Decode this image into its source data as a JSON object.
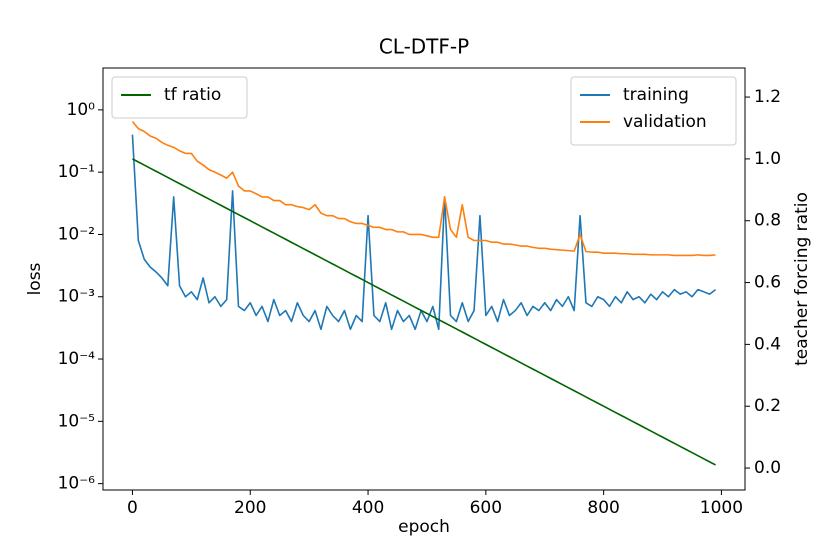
{
  "chart_data": {
    "type": "line",
    "title": "CL-DTF-P",
    "x_label": "epoch",
    "y_label": "loss",
    "y2_label": "teacher forcing ratio",
    "xlim": [
      -50,
      1040
    ],
    "xticks": [
      0,
      200,
      400,
      600,
      800,
      1000
    ],
    "yscale": "log",
    "ylim": [
      7.9e-07,
      4.7
    ],
    "yticks": [
      {
        "value": 1e-06,
        "label": "10⁻⁶"
      },
      {
        "value": 1e-05,
        "label": "10⁻⁵"
      },
      {
        "value": 0.0001,
        "label": "10⁻⁴"
      },
      {
        "value": 0.001,
        "label": "10⁻³"
      },
      {
        "value": 0.01,
        "label": "10⁻²"
      },
      {
        "value": 0.1,
        "label": "10⁻¹"
      },
      {
        "value": 1,
        "label": "10⁰"
      }
    ],
    "y2lim": [
      -0.071,
      1.294
    ],
    "y2ticks": [
      {
        "value": 0,
        "label": "0.0"
      },
      0.2,
      0.4,
      0.6,
      0.8,
      {
        "value": 1,
        "label": "1.0"
      },
      1.2
    ],
    "legend": "upper right",
    "legend2": "upper left",
    "x": [
      0,
      10,
      20,
      30,
      40,
      50,
      60,
      70,
      80,
      90,
      100,
      110,
      120,
      130,
      140,
      150,
      160,
      170,
      180,
      190,
      200,
      210,
      220,
      230,
      240,
      250,
      260,
      270,
      280,
      290,
      300,
      310,
      320,
      330,
      340,
      350,
      360,
      370,
      380,
      390,
      400,
      410,
      420,
      430,
      440,
      450,
      460,
      470,
      480,
      490,
      500,
      510,
      520,
      530,
      540,
      550,
      560,
      570,
      580,
      590,
      600,
      610,
      620,
      630,
      640,
      650,
      660,
      670,
      680,
      690,
      700,
      710,
      720,
      730,
      740,
      750,
      760,
      770,
      780,
      790,
      800,
      810,
      820,
      830,
      840,
      850,
      860,
      870,
      880,
      890,
      900,
      910,
      920,
      930,
      940,
      950,
      960,
      970,
      980,
      990
    ],
    "series": [
      {
        "name": "training",
        "color": "#1f77b4",
        "values": [
          0.4,
          0.008,
          0.004,
          0.003,
          0.0025,
          0.002,
          0.0015,
          0.04,
          0.0015,
          0.001,
          0.0012,
          0.0009,
          0.002,
          0.0008,
          0.001,
          0.0007,
          0.0009,
          0.05,
          0.0007,
          0.0006,
          0.0008,
          0.0005,
          0.0007,
          0.0004,
          0.0009,
          0.0005,
          0.0006,
          0.0004,
          0.0008,
          0.0005,
          0.0004,
          0.0006,
          0.0003,
          0.0007,
          0.0005,
          0.0004,
          0.0006,
          0.0003,
          0.0005,
          0.0004,
          0.02,
          0.0005,
          0.0004,
          0.0008,
          0.0003,
          0.0006,
          0.0004,
          0.0005,
          0.0003,
          0.0006,
          0.0004,
          0.0007,
          0.0003,
          0.04,
          0.0005,
          0.0004,
          0.0008,
          0.0004,
          0.0006,
          0.02,
          0.0005,
          0.0007,
          0.0004,
          0.0009,
          0.0005,
          0.0006,
          0.0008,
          0.0005,
          0.0007,
          0.0006,
          0.0008,
          0.0006,
          0.0009,
          0.0007,
          0.001,
          0.0006,
          0.02,
          0.0008,
          0.0007,
          0.001,
          0.0009,
          0.0007,
          0.001,
          0.0008,
          0.0012,
          0.0009,
          0.001,
          0.0008,
          0.0011,
          0.0009,
          0.0012,
          0.001,
          0.0013,
          0.0011,
          0.0012,
          0.001,
          0.0013,
          0.0012,
          0.0011,
          0.0013
        ]
      },
      {
        "name": "validation",
        "color": "#ff7f0e",
        "values": [
          0.65,
          0.5,
          0.45,
          0.38,
          0.35,
          0.3,
          0.27,
          0.25,
          0.22,
          0.2,
          0.2,
          0.15,
          0.13,
          0.11,
          0.1,
          0.09,
          0.08,
          0.1,
          0.06,
          0.05,
          0.05,
          0.045,
          0.04,
          0.04,
          0.035,
          0.035,
          0.03,
          0.03,
          0.028,
          0.027,
          0.025,
          0.03,
          0.022,
          0.02,
          0.02,
          0.018,
          0.018,
          0.016,
          0.015,
          0.015,
          0.014,
          0.013,
          0.013,
          0.012,
          0.012,
          0.011,
          0.011,
          0.01,
          0.01,
          0.01,
          0.0095,
          0.009,
          0.009,
          0.04,
          0.012,
          0.009,
          0.03,
          0.009,
          0.008,
          0.008,
          0.008,
          0.0075,
          0.0075,
          0.007,
          0.007,
          0.0068,
          0.0065,
          0.0065,
          0.0062,
          0.006,
          0.006,
          0.0058,
          0.0057,
          0.0056,
          0.0055,
          0.0054,
          0.01,
          0.0053,
          0.0052,
          0.0052,
          0.005,
          0.005,
          0.005,
          0.0049,
          0.0049,
          0.0048,
          0.0048,
          0.0048,
          0.0047,
          0.0047,
          0.0047,
          0.0047,
          0.0046,
          0.0046,
          0.0046,
          0.0046,
          0.0047,
          0.0046,
          0.0046,
          0.0047
        ]
      },
      {
        "name": "tf ratio",
        "color": "#006400",
        "axis": "y2",
        "values": [
          1.0,
          0.99,
          0.98,
          0.97,
          0.96,
          0.95,
          0.94,
          0.93,
          0.92,
          0.91,
          0.9,
          0.89,
          0.88,
          0.87,
          0.86,
          0.85,
          0.84,
          0.83,
          0.82,
          0.81,
          0.8,
          0.79,
          0.78,
          0.77,
          0.76,
          0.75,
          0.74,
          0.73,
          0.72,
          0.71,
          0.7,
          0.69,
          0.68,
          0.67,
          0.66,
          0.65,
          0.64,
          0.63,
          0.62,
          0.61,
          0.6,
          0.59,
          0.58,
          0.57,
          0.56,
          0.55,
          0.54,
          0.53,
          0.52,
          0.51,
          0.5,
          0.49,
          0.48,
          0.47,
          0.46,
          0.45,
          0.44,
          0.43,
          0.42,
          0.41,
          0.4,
          0.39,
          0.38,
          0.37,
          0.36,
          0.35,
          0.34,
          0.33,
          0.32,
          0.31,
          0.3,
          0.29,
          0.28,
          0.27,
          0.26,
          0.25,
          0.24,
          0.23,
          0.22,
          0.21,
          0.2,
          0.19,
          0.18,
          0.17,
          0.16,
          0.15,
          0.14,
          0.13,
          0.12,
          0.11,
          0.1,
          0.09,
          0.08,
          0.07,
          0.06,
          0.05,
          0.04,
          0.03,
          0.02,
          0.01
        ]
      }
    ]
  }
}
